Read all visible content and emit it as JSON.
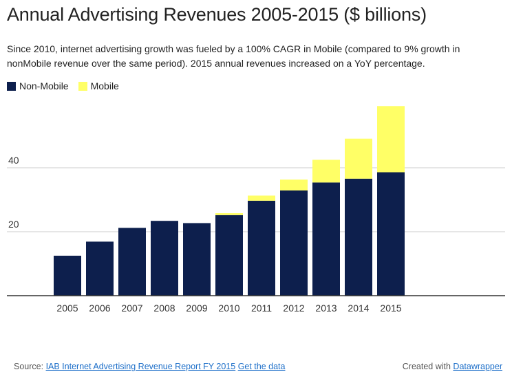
{
  "header": {
    "title": "Annual Advertising Revenues 2005-2015 ($ billions)",
    "subtitle": "Since 2010, internet advertising growth was fueled by a 100% CAGR in Mobile (compared to 9% growth in nonMobile revenue over the same period). 2015 annual revenues increased on a YoY percentage."
  },
  "legend": [
    {
      "label": "Non-Mobile",
      "color": "#0d1f4d"
    },
    {
      "label": "Mobile",
      "color": "#ffff66"
    }
  ],
  "chart_data": {
    "type": "bar",
    "stacked": true,
    "categories": [
      "2005",
      "2006",
      "2007",
      "2008",
      "2009",
      "2010",
      "2011",
      "2012",
      "2013",
      "2014",
      "2015"
    ],
    "series": [
      {
        "name": "Non-Mobile",
        "color": "#0d1f4d",
        "values": [
          12.5,
          16.9,
          21.2,
          23.4,
          22.7,
          25.2,
          29.7,
          32.9,
          35.4,
          36.6,
          38.6
        ]
      },
      {
        "name": "Mobile",
        "color": "#ffff66",
        "values": [
          0,
          0,
          0,
          0,
          0,
          0.6,
          1.6,
          3.4,
          7.1,
          12.5,
          20.7
        ]
      }
    ],
    "y_ticks": [
      20,
      40
    ],
    "ylim": [
      0,
      62
    ],
    "grid": true
  },
  "footer": {
    "source_prefix": "Source: ",
    "source_link": "IAB Internet Advertising Revenue Report FY 2015",
    "data_link": "Get the data",
    "credit_prefix": "Created with ",
    "credit_link": "Datawrapper"
  }
}
